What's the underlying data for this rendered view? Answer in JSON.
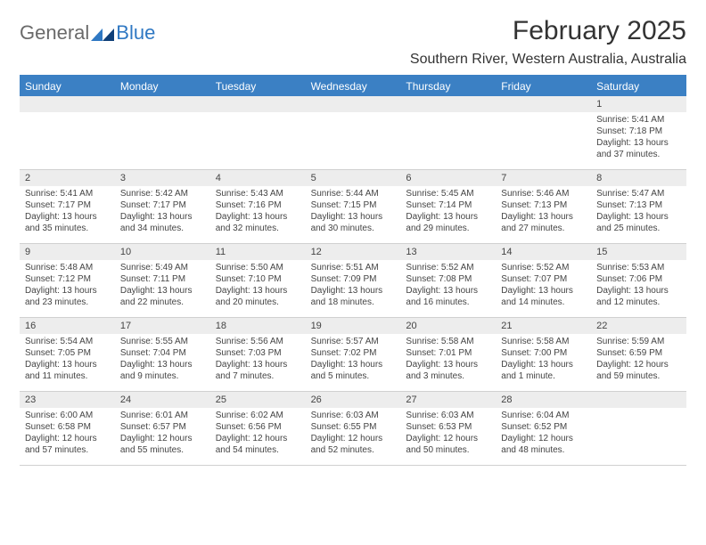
{
  "colors": {
    "header_bg": "#3b80c4",
    "header_text": "#ffffff",
    "daynum_bg": "#ededed",
    "text": "#333333",
    "logo_blue": "#2f78c3",
    "logo_gray": "#6a6a6a",
    "page_bg": "#ffffff",
    "rule": "#d0d0d0"
  },
  "logo": {
    "general": "General",
    "blue": "Blue"
  },
  "title": "February 2025",
  "location": "Southern River, Western Australia, Australia",
  "day_headers": [
    "Sunday",
    "Monday",
    "Tuesday",
    "Wednesday",
    "Thursday",
    "Friday",
    "Saturday"
  ],
  "weeks": [
    [
      null,
      null,
      null,
      null,
      null,
      null,
      {
        "n": "1",
        "sunrise": "Sunrise: 5:41 AM",
        "sunset": "Sunset: 7:18 PM",
        "daylight": "Daylight: 13 hours and 37 minutes."
      }
    ],
    [
      {
        "n": "2",
        "sunrise": "Sunrise: 5:41 AM",
        "sunset": "Sunset: 7:17 PM",
        "daylight": "Daylight: 13 hours and 35 minutes."
      },
      {
        "n": "3",
        "sunrise": "Sunrise: 5:42 AM",
        "sunset": "Sunset: 7:17 PM",
        "daylight": "Daylight: 13 hours and 34 minutes."
      },
      {
        "n": "4",
        "sunrise": "Sunrise: 5:43 AM",
        "sunset": "Sunset: 7:16 PM",
        "daylight": "Daylight: 13 hours and 32 minutes."
      },
      {
        "n": "5",
        "sunrise": "Sunrise: 5:44 AM",
        "sunset": "Sunset: 7:15 PM",
        "daylight": "Daylight: 13 hours and 30 minutes."
      },
      {
        "n": "6",
        "sunrise": "Sunrise: 5:45 AM",
        "sunset": "Sunset: 7:14 PM",
        "daylight": "Daylight: 13 hours and 29 minutes."
      },
      {
        "n": "7",
        "sunrise": "Sunrise: 5:46 AM",
        "sunset": "Sunset: 7:13 PM",
        "daylight": "Daylight: 13 hours and 27 minutes."
      },
      {
        "n": "8",
        "sunrise": "Sunrise: 5:47 AM",
        "sunset": "Sunset: 7:13 PM",
        "daylight": "Daylight: 13 hours and 25 minutes."
      }
    ],
    [
      {
        "n": "9",
        "sunrise": "Sunrise: 5:48 AM",
        "sunset": "Sunset: 7:12 PM",
        "daylight": "Daylight: 13 hours and 23 minutes."
      },
      {
        "n": "10",
        "sunrise": "Sunrise: 5:49 AM",
        "sunset": "Sunset: 7:11 PM",
        "daylight": "Daylight: 13 hours and 22 minutes."
      },
      {
        "n": "11",
        "sunrise": "Sunrise: 5:50 AM",
        "sunset": "Sunset: 7:10 PM",
        "daylight": "Daylight: 13 hours and 20 minutes."
      },
      {
        "n": "12",
        "sunrise": "Sunrise: 5:51 AM",
        "sunset": "Sunset: 7:09 PM",
        "daylight": "Daylight: 13 hours and 18 minutes."
      },
      {
        "n": "13",
        "sunrise": "Sunrise: 5:52 AM",
        "sunset": "Sunset: 7:08 PM",
        "daylight": "Daylight: 13 hours and 16 minutes."
      },
      {
        "n": "14",
        "sunrise": "Sunrise: 5:52 AM",
        "sunset": "Sunset: 7:07 PM",
        "daylight": "Daylight: 13 hours and 14 minutes."
      },
      {
        "n": "15",
        "sunrise": "Sunrise: 5:53 AM",
        "sunset": "Sunset: 7:06 PM",
        "daylight": "Daylight: 13 hours and 12 minutes."
      }
    ],
    [
      {
        "n": "16",
        "sunrise": "Sunrise: 5:54 AM",
        "sunset": "Sunset: 7:05 PM",
        "daylight": "Daylight: 13 hours and 11 minutes."
      },
      {
        "n": "17",
        "sunrise": "Sunrise: 5:55 AM",
        "sunset": "Sunset: 7:04 PM",
        "daylight": "Daylight: 13 hours and 9 minutes."
      },
      {
        "n": "18",
        "sunrise": "Sunrise: 5:56 AM",
        "sunset": "Sunset: 7:03 PM",
        "daylight": "Daylight: 13 hours and 7 minutes."
      },
      {
        "n": "19",
        "sunrise": "Sunrise: 5:57 AM",
        "sunset": "Sunset: 7:02 PM",
        "daylight": "Daylight: 13 hours and 5 minutes."
      },
      {
        "n": "20",
        "sunrise": "Sunrise: 5:58 AM",
        "sunset": "Sunset: 7:01 PM",
        "daylight": "Daylight: 13 hours and 3 minutes."
      },
      {
        "n": "21",
        "sunrise": "Sunrise: 5:58 AM",
        "sunset": "Sunset: 7:00 PM",
        "daylight": "Daylight: 13 hours and 1 minute."
      },
      {
        "n": "22",
        "sunrise": "Sunrise: 5:59 AM",
        "sunset": "Sunset: 6:59 PM",
        "daylight": "Daylight: 12 hours and 59 minutes."
      }
    ],
    [
      {
        "n": "23",
        "sunrise": "Sunrise: 6:00 AM",
        "sunset": "Sunset: 6:58 PM",
        "daylight": "Daylight: 12 hours and 57 minutes."
      },
      {
        "n": "24",
        "sunrise": "Sunrise: 6:01 AM",
        "sunset": "Sunset: 6:57 PM",
        "daylight": "Daylight: 12 hours and 55 minutes."
      },
      {
        "n": "25",
        "sunrise": "Sunrise: 6:02 AM",
        "sunset": "Sunset: 6:56 PM",
        "daylight": "Daylight: 12 hours and 54 minutes."
      },
      {
        "n": "26",
        "sunrise": "Sunrise: 6:03 AM",
        "sunset": "Sunset: 6:55 PM",
        "daylight": "Daylight: 12 hours and 52 minutes."
      },
      {
        "n": "27",
        "sunrise": "Sunrise: 6:03 AM",
        "sunset": "Sunset: 6:53 PM",
        "daylight": "Daylight: 12 hours and 50 minutes."
      },
      {
        "n": "28",
        "sunrise": "Sunrise: 6:04 AM",
        "sunset": "Sunset: 6:52 PM",
        "daylight": "Daylight: 12 hours and 48 minutes."
      },
      null
    ]
  ]
}
